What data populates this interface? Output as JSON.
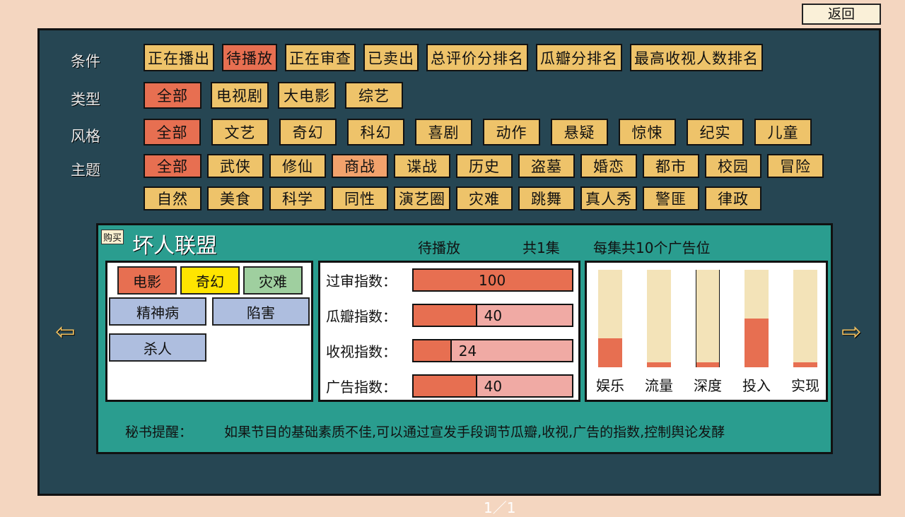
{
  "return_label": "返回",
  "filters": {
    "condition": {
      "label": "条件",
      "options": [
        "正在播出",
        "待播放",
        "正在审查",
        "已卖出",
        "总评价分排名",
        "瓜瓣分排名",
        "最高收视人数排名"
      ],
      "selected": "待播放"
    },
    "type": {
      "label": "类型",
      "options": [
        "全部",
        "电视剧",
        "大电影",
        "综艺"
      ],
      "selected": "全部"
    },
    "style": {
      "label": "风格",
      "options": [
        "全部",
        "文艺",
        "奇幻",
        "科幻",
        "喜剧",
        "动作",
        "悬疑",
        "惊悚",
        "纪实",
        "儿童"
      ],
      "selected": "全部"
    },
    "theme": {
      "label": "主题",
      "options": [
        "全部",
        "武侠",
        "修仙",
        "商战",
        "谍战",
        "历史",
        "盗墓",
        "婚恋",
        "都市",
        "校园",
        "冒险",
        "自然",
        "美食",
        "科学",
        "同性",
        "演艺圈",
        "灾难",
        "跳舞",
        "真人秀",
        "警匪",
        "律政"
      ],
      "selected": "全部",
      "highlighted": "商战"
    }
  },
  "show": {
    "buy_label": "购买",
    "title": "坏人联盟",
    "status": "待播放",
    "episodes": "共1集",
    "ads": "每集共10个广告位",
    "tags": [
      {
        "text": "电影",
        "color": "#e76f51"
      },
      {
        "text": "奇幻",
        "color": "#ffe500"
      },
      {
        "text": "灾难",
        "color": "#9fcf9f"
      }
    ],
    "elements": [
      "精神病",
      "陷害",
      "杀人"
    ],
    "indices": [
      {
        "label": "过审指数：",
        "value": "100",
        "fill": 100
      },
      {
        "label": "瓜瓣指数：",
        "value": "40",
        "fill": 40
      },
      {
        "label": "收视指数：",
        "value": "24",
        "fill": 24
      },
      {
        "label": "广告指数：",
        "value": "40",
        "fill": 40
      }
    ],
    "attributes": [
      {
        "label": "娱乐",
        "fill": 30
      },
      {
        "label": "流量",
        "fill": 5
      },
      {
        "label": "深度",
        "fill": 5
      },
      {
        "label": "投入",
        "fill": 50
      },
      {
        "label": "实现",
        "fill": 5
      }
    ],
    "tip_label": "秘书提醒：",
    "tip_text": "如果节目的基础素质不佳,可以通过宣发手段调节瓜瓣,收视,广告的指数,控制舆论发酵"
  },
  "pager": "1／1",
  "icons": {
    "prev": "arrow-left-icon",
    "next": "arrow-right-icon"
  }
}
